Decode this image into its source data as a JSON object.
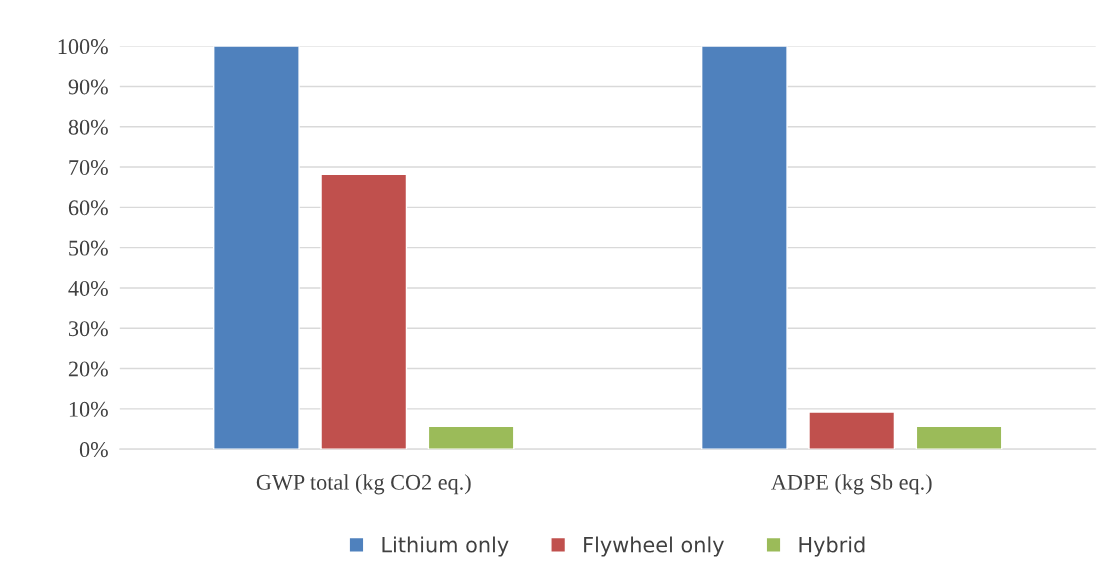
{
  "chart_data": {
    "type": "bar",
    "categories": [
      "GWP total (kg CO2 eq.)",
      "ADPE (kg Sb eq.)"
    ],
    "series": [
      {
        "name": "Lithium only",
        "color": "#4f81bd",
        "values": [
          100,
          100
        ]
      },
      {
        "name": "Flywheel only",
        "color": "#c0504d",
        "values": [
          68.2,
          9.2
        ]
      },
      {
        "name": "Hybrid",
        "color": "#9bbb59",
        "values": [
          5.7,
          5.7
        ]
      }
    ],
    "ylim": [
      0,
      100
    ],
    "yticks": [
      {
        "value": 0,
        "label": "0%"
      },
      {
        "value": 10,
        "label": "10%"
      },
      {
        "value": 20,
        "label": "20%"
      },
      {
        "value": 30,
        "label": "30%"
      },
      {
        "value": 40,
        "label": "40%"
      },
      {
        "value": 50,
        "label": "50%"
      },
      {
        "value": 60,
        "label": "60%"
      },
      {
        "value": 70,
        "label": "70%"
      },
      {
        "value": 80,
        "label": "80%"
      },
      {
        "value": 90,
        "label": "90%"
      },
      {
        "value": 100,
        "label": "100%"
      }
    ],
    "grid": "y",
    "legend": "bottom"
  }
}
